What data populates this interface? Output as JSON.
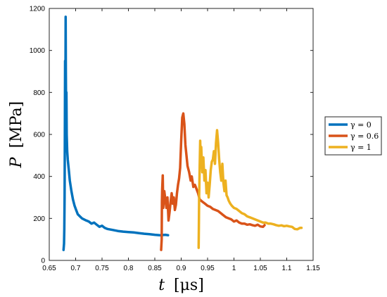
{
  "chart_data": {
    "type": "line",
    "title": "",
    "xlabel_var": "t",
    "xlabel_unit": "[μs]",
    "ylabel_var": "P",
    "ylabel_unit": "[MPa]",
    "xlim": [
      0.65,
      1.15
    ],
    "ylim": [
      0,
      1200
    ],
    "xticks": [
      0.65,
      0.7,
      0.75,
      0.8,
      0.85,
      0.9,
      0.95,
      1,
      1.05,
      1.1,
      1.15
    ],
    "xtick_labels": [
      "0.65",
      "0.7",
      "0.75",
      "0.8",
      "0.85",
      "0.9",
      "0.95",
      "1",
      "1.05",
      "1.1",
      "1.15"
    ],
    "yticks": [
      0,
      200,
      400,
      600,
      800,
      1000,
      1200
    ],
    "ytick_labels": [
      "0",
      "200",
      "400",
      "600",
      "800",
      "1000",
      "1200"
    ],
    "grid": false,
    "legend_position": "right",
    "series": [
      {
        "name": "γ = 0",
        "color": "#0072BD",
        "points": [
          [
            0.677,
            50
          ],
          [
            0.678,
            80
          ],
          [
            0.6785,
            150
          ],
          [
            0.679,
            300
          ],
          [
            0.6795,
            550
          ],
          [
            0.68,
            950
          ],
          [
            0.6805,
            700
          ],
          [
            0.681,
            1160
          ],
          [
            0.6815,
            900
          ],
          [
            0.682,
            700
          ],
          [
            0.6825,
            800
          ],
          [
            0.683,
            600
          ],
          [
            0.684,
            520
          ],
          [
            0.685,
            480
          ],
          [
            0.687,
            430
          ],
          [
            0.689,
            380
          ],
          [
            0.692,
            330
          ],
          [
            0.695,
            290
          ],
          [
            0.698,
            260
          ],
          [
            0.701,
            240
          ],
          [
            0.704,
            220
          ],
          [
            0.708,
            210
          ],
          [
            0.712,
            200
          ],
          [
            0.716,
            195
          ],
          [
            0.72,
            190
          ],
          [
            0.725,
            185
          ],
          [
            0.73,
            175
          ],
          [
            0.735,
            180
          ],
          [
            0.74,
            170
          ],
          [
            0.745,
            160
          ],
          [
            0.75,
            165
          ],
          [
            0.755,
            155
          ],
          [
            0.76,
            150
          ],
          [
            0.77,
            145
          ],
          [
            0.78,
            140
          ],
          [
            0.79,
            137
          ],
          [
            0.8,
            135
          ],
          [
            0.81,
            133
          ],
          [
            0.82,
            130
          ],
          [
            0.83,
            127
          ],
          [
            0.84,
            125
          ],
          [
            0.85,
            122
          ],
          [
            0.86,
            120
          ],
          [
            0.87,
            122
          ],
          [
            0.875,
            120
          ]
        ]
      },
      {
        "name": "γ = 0.6",
        "color": "#D95319",
        "points": [
          [
            0.862,
            50
          ],
          [
            0.863,
            100
          ],
          [
            0.8635,
            280
          ],
          [
            0.864,
            340
          ],
          [
            0.865,
            405
          ],
          [
            0.866,
            250
          ],
          [
            0.867,
            300
          ],
          [
            0.868,
            330
          ],
          [
            0.87,
            290
          ],
          [
            0.872,
            250
          ],
          [
            0.874,
            300
          ],
          [
            0.876,
            190
          ],
          [
            0.878,
            230
          ],
          [
            0.88,
            280
          ],
          [
            0.882,
            320
          ],
          [
            0.884,
            270
          ],
          [
            0.886,
            300
          ],
          [
            0.888,
            240
          ],
          [
            0.89,
            265
          ],
          [
            0.892,
            320
          ],
          [
            0.894,
            360
          ],
          [
            0.896,
            390
          ],
          [
            0.898,
            440
          ],
          [
            0.9,
            570
          ],
          [
            0.902,
            680
          ],
          [
            0.904,
            700
          ],
          [
            0.906,
            650
          ],
          [
            0.908,
            550
          ],
          [
            0.91,
            500
          ],
          [
            0.912,
            450
          ],
          [
            0.915,
            420
          ],
          [
            0.918,
            380
          ],
          [
            0.92,
            400
          ],
          [
            0.923,
            350
          ],
          [
            0.926,
            360
          ],
          [
            0.929,
            340
          ],
          [
            0.932,
            320
          ],
          [
            0.935,
            290
          ],
          [
            0.94,
            280
          ],
          [
            0.945,
            270
          ],
          [
            0.95,
            260
          ],
          [
            0.955,
            255
          ],
          [
            0.96,
            245
          ],
          [
            0.965,
            240
          ],
          [
            0.97,
            235
          ],
          [
            0.975,
            225
          ],
          [
            0.98,
            215
          ],
          [
            0.985,
            205
          ],
          [
            0.99,
            200
          ],
          [
            0.995,
            195
          ],
          [
            1.0,
            185
          ],
          [
            1.005,
            190
          ],
          [
            1.01,
            180
          ],
          [
            1.015,
            175
          ],
          [
            1.02,
            175
          ],
          [
            1.025,
            170
          ],
          [
            1.03,
            172
          ],
          [
            1.035,
            168
          ],
          [
            1.04,
            165
          ],
          [
            1.045,
            170
          ],
          [
            1.05,
            162
          ],
          [
            1.055,
            160
          ],
          [
            1.058,
            168
          ]
        ]
      },
      {
        "name": "γ = 1",
        "color": "#EDB120",
        "points": [
          [
            0.933,
            60
          ],
          [
            0.9335,
            150
          ],
          [
            0.934,
            300
          ],
          [
            0.935,
            450
          ],
          [
            0.936,
            570
          ],
          [
            0.937,
            480
          ],
          [
            0.938,
            540
          ],
          [
            0.94,
            420
          ],
          [
            0.942,
            490
          ],
          [
            0.944,
            380
          ],
          [
            0.946,
            430
          ],
          [
            0.948,
            320
          ],
          [
            0.95,
            370
          ],
          [
            0.952,
            300
          ],
          [
            0.954,
            360
          ],
          [
            0.956,
            430
          ],
          [
            0.958,
            470
          ],
          [
            0.96,
            480
          ],
          [
            0.962,
            520
          ],
          [
            0.964,
            460
          ],
          [
            0.966,
            560
          ],
          [
            0.968,
            620
          ],
          [
            0.97,
            560
          ],
          [
            0.972,
            480
          ],
          [
            0.974,
            420
          ],
          [
            0.976,
            380
          ],
          [
            0.978,
            460
          ],
          [
            0.98,
            370
          ],
          [
            0.982,
            330
          ],
          [
            0.984,
            380
          ],
          [
            0.986,
            310
          ],
          [
            0.988,
            300
          ],
          [
            0.99,
            285
          ],
          [
            0.993,
            270
          ],
          [
            0.996,
            260
          ],
          [
            1.0,
            250
          ],
          [
            1.005,
            245
          ],
          [
            1.01,
            235
          ],
          [
            1.015,
            225
          ],
          [
            1.02,
            220
          ],
          [
            1.025,
            210
          ],
          [
            1.03,
            205
          ],
          [
            1.035,
            200
          ],
          [
            1.04,
            195
          ],
          [
            1.045,
            190
          ],
          [
            1.05,
            185
          ],
          [
            1.055,
            180
          ],
          [
            1.06,
            180
          ],
          [
            1.065,
            175
          ],
          [
            1.07,
            175
          ],
          [
            1.075,
            172
          ],
          [
            1.08,
            168
          ],
          [
            1.085,
            165
          ],
          [
            1.09,
            167
          ],
          [
            1.095,
            163
          ],
          [
            1.1,
            165
          ],
          [
            1.105,
            162
          ],
          [
            1.11,
            160
          ],
          [
            1.115,
            150
          ],
          [
            1.12,
            148
          ],
          [
            1.125,
            155
          ],
          [
            1.128,
            155
          ]
        ]
      }
    ]
  }
}
